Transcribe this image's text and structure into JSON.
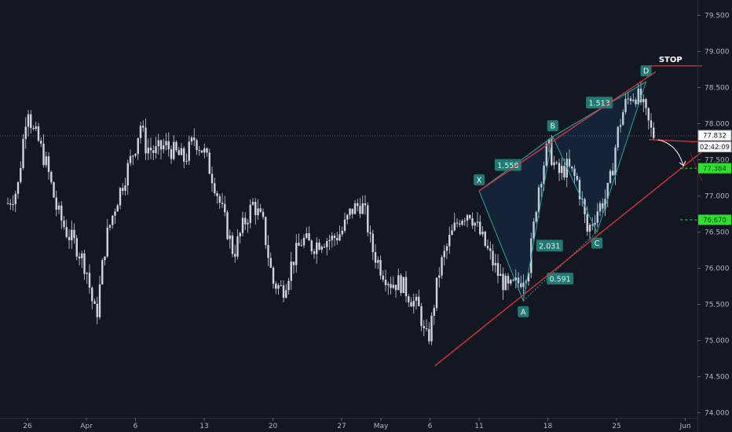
{
  "chart_data": {
    "type": "candlestick",
    "title": "",
    "xlabel": "",
    "ylabel": "",
    "ylim": [
      74.0,
      79.75
    ],
    "grid": false,
    "legend": "none",
    "x_ticks": [
      {
        "label": "26",
        "day": 2
      },
      {
        "label": "Apr",
        "day": 8
      },
      {
        "label": "6",
        "day": 13
      },
      {
        "label": "13",
        "day": 20
      },
      {
        "label": "20",
        "day": 27
      },
      {
        "label": "27",
        "day": 34
      },
      {
        "label": "May",
        "day": 38
      },
      {
        "label": "6",
        "day": 43
      },
      {
        "label": "11",
        "day": 48
      },
      {
        "label": "18",
        "day": 55
      },
      {
        "label": "25",
        "day": 62
      },
      {
        "label": "Jun",
        "day": 69
      }
    ],
    "y_ticks": [
      "74.000",
      "74.500",
      "75.000",
      "75.500",
      "76.000",
      "76.500",
      "77.000",
      "77.500",
      "78.000",
      "78.500",
      "79.000",
      "79.500"
    ],
    "candles_close_path": [
      [
        0,
        76.9
      ],
      [
        1,
        77.1
      ],
      [
        1.5,
        77.7
      ],
      [
        2,
        78.3
      ],
      [
        2.5,
        77.9
      ],
      [
        3,
        77.8
      ],
      [
        4,
        77.4
      ],
      [
        5,
        76.8
      ],
      [
        6,
        76.5
      ],
      [
        7,
        76.3
      ],
      [
        8,
        76.0
      ],
      [
        8.5,
        75.6
      ],
      [
        9,
        75.3
      ],
      [
        9.5,
        75.9
      ],
      [
        10,
        76.4
      ],
      [
        11,
        76.9
      ],
      [
        12,
        77.3
      ],
      [
        13,
        77.7
      ],
      [
        13.5,
        78.0
      ],
      [
        14,
        77.7
      ],
      [
        15,
        77.6
      ],
      [
        16,
        77.7
      ],
      [
        17,
        77.6
      ],
      [
        18,
        77.5
      ],
      [
        19,
        77.8
      ],
      [
        20,
        77.6
      ],
      [
        21,
        77.2
      ],
      [
        22,
        76.7
      ],
      [
        23,
        76.2
      ],
      [
        24,
        76.6
      ],
      [
        25,
        76.9
      ],
      [
        26,
        76.6
      ],
      [
        27,
        75.8
      ],
      [
        28,
        75.7
      ],
      [
        29,
        76.1
      ],
      [
        30,
        76.4
      ],
      [
        31,
        76.3
      ],
      [
        32,
        76.4
      ],
      [
        33,
        76.4
      ],
      [
        34,
        76.5
      ],
      [
        35,
        76.8
      ],
      [
        36,
        76.9
      ],
      [
        36.5,
        76.7
      ],
      [
        37,
        76.3
      ],
      [
        38,
        76.0
      ],
      [
        39,
        75.8
      ],
      [
        40,
        75.8
      ],
      [
        41,
        75.6
      ],
      [
        42,
        75.4
      ],
      [
        42.5,
        75.0
      ],
      [
        43,
        75.1
      ],
      [
        43.5,
        75.6
      ],
      [
        44,
        76.0
      ],
      [
        45,
        76.4
      ],
      [
        46,
        76.7
      ],
      [
        47,
        76.8
      ],
      [
        48,
        76.5
      ],
      [
        49,
        76.2
      ],
      [
        50,
        75.9
      ],
      [
        51,
        75.7
      ],
      [
        52,
        75.8
      ],
      [
        53,
        76.0
      ],
      [
        53.5,
        76.5
      ],
      [
        54,
        77.1
      ],
      [
        55,
        77.7
      ],
      [
        55.5,
        77.5
      ],
      [
        56,
        77.3
      ],
      [
        57,
        77.4
      ],
      [
        58,
        77.2
      ],
      [
        58.5,
        76.9
      ],
      [
        59,
        76.5
      ],
      [
        60,
        76.8
      ],
      [
        61,
        77.0
      ],
      [
        61.5,
        77.3
      ],
      [
        62,
        77.8
      ],
      [
        62.5,
        78.1
      ],
      [
        63,
        78.3
      ],
      [
        63.5,
        78.4
      ],
      [
        64,
        78.4
      ],
      [
        64.5,
        78.3
      ],
      [
        65,
        78.1
      ],
      [
        65.5,
        77.9
      ],
      [
        66,
        77.8
      ]
    ],
    "harmonic_pattern": {
      "points": [
        {
          "label": "X",
          "value": 77.07
        },
        {
          "label": "A",
          "value": 75.55
        },
        {
          "label": "B",
          "value": 77.82
        },
        {
          "label": "C",
          "value": 76.5
        },
        {
          "label": "D",
          "value": 78.58
        }
      ],
      "ratios": [
        "1.558",
        "2.031",
        "1.513",
        "0.591"
      ]
    },
    "annotations": {
      "stop_label": "STOP",
      "stop_level": 78.8,
      "support_level": 77.78
    },
    "price_tags": {
      "last_price": "77.832",
      "countdown": "02:42:09",
      "target_1": "77.384",
      "target_2": "76.670"
    },
    "colors": {
      "background": "#131722",
      "candle": "#d1d4dc",
      "pattern": "#26a69a",
      "trendline": "#e0333a",
      "target": "#2ee02e"
    }
  }
}
